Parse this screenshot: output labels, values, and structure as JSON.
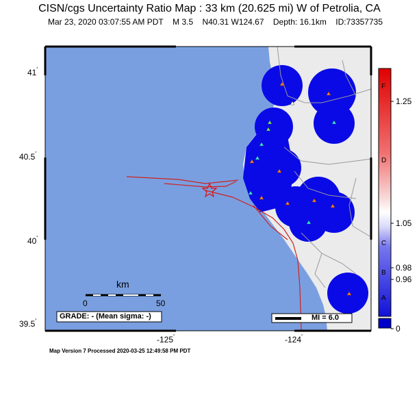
{
  "map": {
    "title": "CISN/cgs Uncertainty Ratio Map : 33 km (20.625 mi) W of Petrolia, CA",
    "date": "Mar 23, 2020 03:07:55 AM PDT",
    "magnitude": "M 3.5",
    "location": "N40.31 W124.67",
    "depth": "Depth: 16.1km",
    "event_id": "ID:73357735",
    "footer": "Map Version 7 Processed 2020-03-25 12:49:58 PM PDT",
    "colors": {
      "ocean": "#7a9fe0",
      "land": "#ebebeb",
      "station_blue": "#0a0ae6",
      "fault": "#cc2222",
      "star": "#e01010"
    }
  },
  "axes": {
    "y_ticks": [
      {
        "value": 41,
        "label": "41"
      },
      {
        "value": 40.5,
        "label": "40.5"
      },
      {
        "value": 40,
        "label": "40"
      },
      {
        "value": 39.5,
        "label": "39.5"
      }
    ],
    "x_ticks": [
      {
        "value": -125,
        "label": "-125"
      },
      {
        "value": -124,
        "label": "-124"
      }
    ]
  },
  "scale_bar": {
    "unit": "km",
    "start_label": "0",
    "end_label": "50"
  },
  "grade_box": "GRADE: - (Mean sigma: -)",
  "mi_legend": "MI = 6.0",
  "colorbar": {
    "letters": [
      "F",
      "D",
      "C",
      "B",
      "A"
    ],
    "values": [
      "1.25",
      "1.05",
      "0.98",
      "0.96",
      "0"
    ],
    "top_color": "#e01010",
    "bottom_color": "#0000cc"
  }
}
